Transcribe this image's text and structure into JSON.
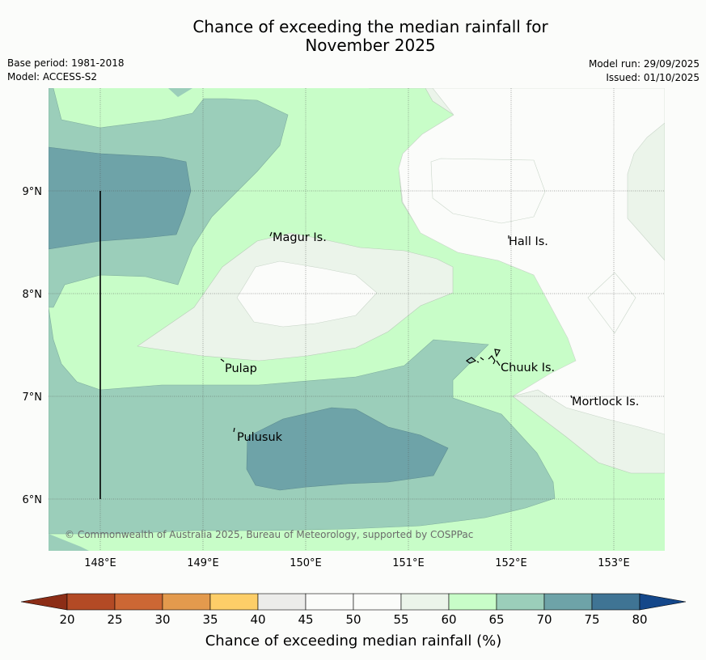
{
  "title_line1": "Chance of exceeding the median rainfall for",
  "title_line2": "November 2025",
  "meta": {
    "base_period": "Base period: 1981-2018",
    "model": "Model: ACCESS-S2",
    "model_run": "Model run: 29/09/2025",
    "issued": "Issued: 01/10/2025"
  },
  "map": {
    "lon_ticks": [
      "148°E",
      "149°E",
      "150°E",
      "151°E",
      "152°E",
      "153°E"
    ],
    "lat_ticks": [
      "9°N",
      "8°N",
      "7°N",
      "6°N"
    ],
    "places": [
      {
        "name": "Magur Is."
      },
      {
        "name": "Hall Is."
      },
      {
        "name": "Pulap"
      },
      {
        "name": "Chuuk Is."
      },
      {
        "name": "Mortlock Is."
      },
      {
        "name": "Pulusuk"
      }
    ],
    "copyright": "© Commonwealth of Australia 2025, Bureau of Meteorology, supported by COSPPac"
  },
  "colorbar": {
    "label": "Chance of exceeding median rainfall (%)",
    "ticks": [
      "20",
      "25",
      "30",
      "35",
      "40",
      "45",
      "50",
      "55",
      "60",
      "65",
      "70",
      "75",
      "80"
    ],
    "colors": {
      "below20": "#8c2d16",
      "b20_25": "#b34a25",
      "b25_30": "#cc6734",
      "b30_35": "#e39a4d",
      "b35_40": "#fdce68",
      "b40_45": "#ececea",
      "b45_50": "#fbfcfa",
      "b50_55": "#fbfcfa",
      "b55_60": "#ebf4ea",
      "b60_65": "#c8fdc8",
      "b65_70": "#9bceba",
      "b70_75": "#6ea3a8",
      "b75_80": "#3f7494",
      "above80": "#14478a"
    }
  }
}
